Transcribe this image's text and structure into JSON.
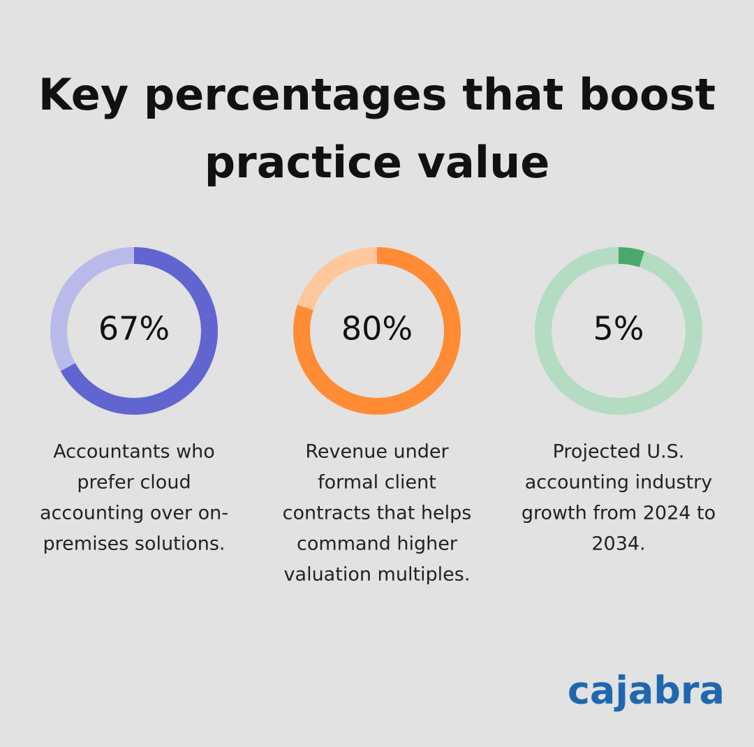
{
  "title": [
    "Key percentages that boost",
    "practice value"
  ],
  "chart_data": [
    {
      "type": "donut",
      "values": [
        67
      ],
      "value_labels": [
        "67%"
      ],
      "ylim": [
        0,
        100
      ],
      "color": "#6264d0",
      "track_color": "#b9bae9",
      "description": [
        "Accountants who",
        "prefer cloud",
        "accounting over on-",
        "premises solutions."
      ]
    },
    {
      "type": "donut",
      "values": [
        80
      ],
      "value_labels": [
        "80%"
      ],
      "ylim": [
        0,
        100
      ],
      "color": "#ff8c35",
      "track_color": "#ffc79c",
      "description": [
        "Revenue under",
        "formal client",
        "contracts that helps",
        "command higher",
        "valuation multiples."
      ]
    },
    {
      "type": "donut",
      "values": [
        5
      ],
      "value_labels": [
        "5%"
      ],
      "ylim": [
        0,
        100
      ],
      "color": "#4ca86a",
      "track_color": "#b3dcc2",
      "description": [
        "Projected U.S.",
        "accounting industry",
        "growth from 2024 to",
        "2034."
      ]
    }
  ],
  "logo": "cajabra"
}
